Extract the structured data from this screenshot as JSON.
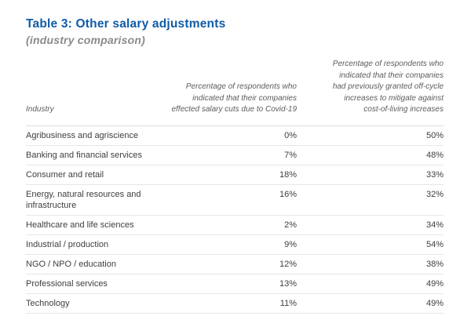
{
  "page": {
    "title": "Table 3: Other salary adjustments",
    "subtitle": "(industry comparison)"
  },
  "colors": {
    "title_blue": "#0f5ba7",
    "subtitle_gray": "#8a8a8a",
    "header_text_gray": "#5c5c5c",
    "body_text": "#3e3e3e",
    "divider": "#e6e6e6"
  },
  "table": {
    "columns": [
      "Industry",
      "Percentage of respondents who indicated that their companies effected salary cuts due to Covid-19",
      "Percentage of respondents who indicated that their companies had previously granted off-cycle increases to mitigate against cost-of-living increases"
    ],
    "rows": [
      {
        "industry": "Agribusiness and agriscience",
        "salary_cuts_pct": "0%",
        "off_cycle_pct": "50%"
      },
      {
        "industry": "Banking and financial services",
        "salary_cuts_pct": "7%",
        "off_cycle_pct": "48%"
      },
      {
        "industry": "Consumer and retail",
        "salary_cuts_pct": "18%",
        "off_cycle_pct": "33%"
      },
      {
        "industry": "Energy, natural resources and infrastructure",
        "salary_cuts_pct": "16%",
        "off_cycle_pct": "32%"
      },
      {
        "industry": "Healthcare and life sciences",
        "salary_cuts_pct": "2%",
        "off_cycle_pct": "34%"
      },
      {
        "industry": "Industrial / production",
        "salary_cuts_pct": "9%",
        "off_cycle_pct": "54%"
      },
      {
        "industry": "NGO / NPO / education",
        "salary_cuts_pct": "12%",
        "off_cycle_pct": "38%"
      },
      {
        "industry": "Professional services",
        "salary_cuts_pct": "13%",
        "off_cycle_pct": "49%"
      },
      {
        "industry": "Technology",
        "salary_cuts_pct": "11%",
        "off_cycle_pct": "49%"
      }
    ]
  },
  "chart_data": {
    "type": "table",
    "title": "Table 3: Other salary adjustments (industry comparison)",
    "columns": [
      "Industry",
      "Percentage of respondents who indicated that their companies effected salary cuts due to Covid-19",
      "Percentage of respondents who indicated that their companies had previously granted off-cycle increases to mitigate against cost-of-living increases"
    ],
    "rows": [
      [
        "Agribusiness and agriscience",
        "0%",
        "50%"
      ],
      [
        "Banking and financial services",
        "7%",
        "48%"
      ],
      [
        "Consumer and retail",
        "18%",
        "33%"
      ],
      [
        "Energy, natural resources and infrastructure",
        "16%",
        "32%"
      ],
      [
        "Healthcare and life sciences",
        "2%",
        "34%"
      ],
      [
        "Industrial / production",
        "9%",
        "54%"
      ],
      [
        "NGO / NPO / education",
        "12%",
        "38%"
      ],
      [
        "Professional services",
        "13%",
        "49%"
      ],
      [
        "Technology",
        "11%",
        "49%"
      ]
    ]
  }
}
